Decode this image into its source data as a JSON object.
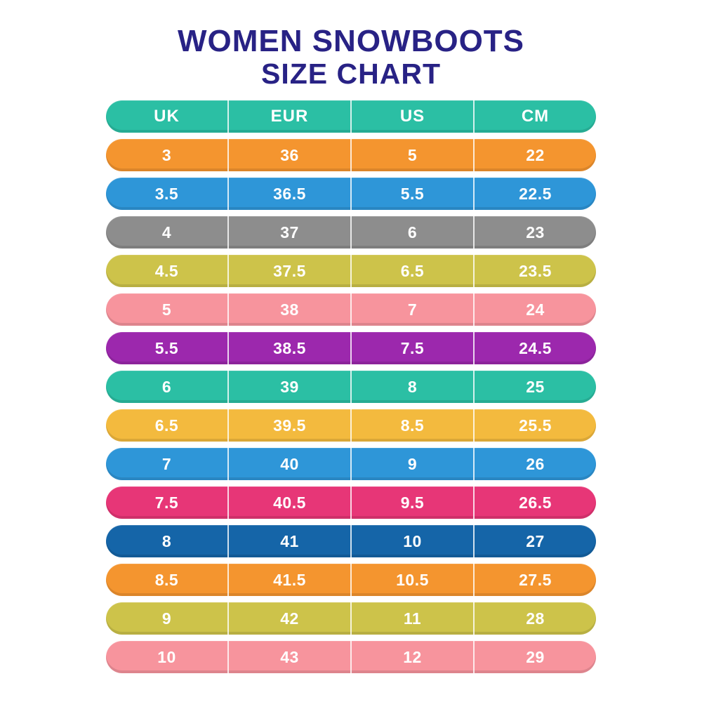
{
  "title": {
    "line1": "WOMEN SNOWBOOTS",
    "line2": "SIZE CHART",
    "color": "#282285"
  },
  "chart_data": {
    "type": "table",
    "title": "Women Snowboots Size Chart",
    "columns": [
      "UK",
      "EUR",
      "US",
      "CM"
    ],
    "rows": [
      [
        3,
        36,
        5,
        22
      ],
      [
        3.5,
        36.5,
        5.5,
        22.5
      ],
      [
        4,
        37,
        6,
        23
      ],
      [
        4.5,
        37.5,
        6.5,
        23.5
      ],
      [
        5,
        38,
        7,
        24
      ],
      [
        5.5,
        38.5,
        7.5,
        24.5
      ],
      [
        6,
        39,
        8,
        25
      ],
      [
        6.5,
        39.5,
        8.5,
        25.5
      ],
      [
        7,
        40,
        9,
        26
      ],
      [
        7.5,
        40.5,
        9.5,
        26.5
      ],
      [
        8,
        41,
        10,
        27
      ],
      [
        8.5,
        41.5,
        10.5,
        27.5
      ],
      [
        9,
        42,
        11,
        28
      ],
      [
        10,
        43,
        12,
        29
      ]
    ]
  },
  "table": {
    "text_color": "#ffffff",
    "header": {
      "color": "#2bbfa4",
      "labels": [
        "UK",
        "EUR",
        "US",
        "CM"
      ]
    },
    "rows": [
      {
        "color": "#f4952f",
        "values": [
          "3",
          "36",
          "5",
          "22"
        ]
      },
      {
        "color": "#2e96d8",
        "values": [
          "3.5",
          "36.5",
          "5.5",
          "22.5"
        ]
      },
      {
        "color": "#8d8d8d",
        "values": [
          "4",
          "37",
          "6",
          "23"
        ]
      },
      {
        "color": "#cdc34a",
        "values": [
          "4.5",
          "37.5",
          "6.5",
          "23.5"
        ]
      },
      {
        "color": "#f7949d",
        "values": [
          "5",
          "38",
          "7",
          "24"
        ]
      },
      {
        "color": "#9c28ad",
        "values": [
          "5.5",
          "38.5",
          "7.5",
          "24.5"
        ]
      },
      {
        "color": "#2bbfa4",
        "values": [
          "6",
          "39",
          "8",
          "25"
        ]
      },
      {
        "color": "#f3ba3e",
        "values": [
          "6.5",
          "39.5",
          "8.5",
          "25.5"
        ]
      },
      {
        "color": "#2e96d8",
        "values": [
          "7",
          "40",
          "9",
          "26"
        ]
      },
      {
        "color": "#e73677",
        "values": [
          "7.5",
          "40.5",
          "9.5",
          "26.5"
        ]
      },
      {
        "color": "#1565a8",
        "values": [
          "8",
          "41",
          "10",
          "27"
        ]
      },
      {
        "color": "#f4952f",
        "values": [
          "8.5",
          "41.5",
          "10.5",
          "27.5"
        ]
      },
      {
        "color": "#cdc34a",
        "values": [
          "9",
          "42",
          "11",
          "28"
        ]
      },
      {
        "color": "#f7949d",
        "values": [
          "10",
          "43",
          "12",
          "29"
        ]
      }
    ]
  }
}
